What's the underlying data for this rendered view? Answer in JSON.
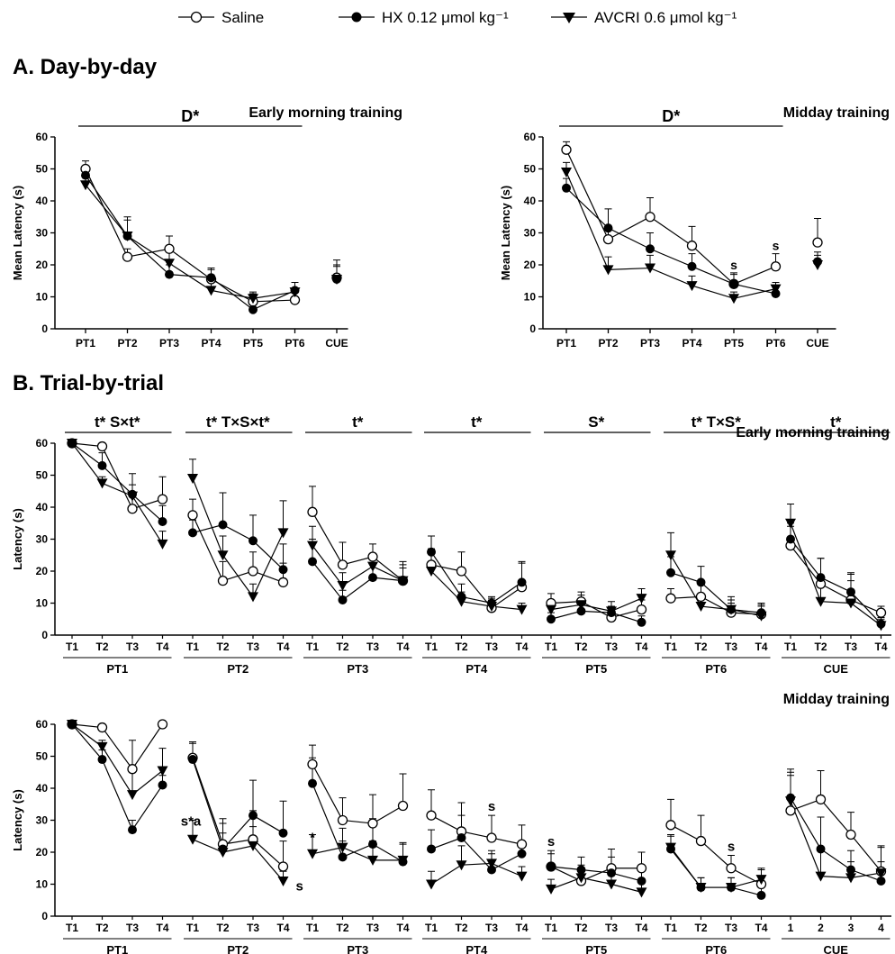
{
  "legend": {
    "saline": "Saline",
    "hx": "HX 0.12 μmol kg⁻¹",
    "avcri": "AVCRI 0.6 μmol kg⁻¹"
  },
  "section_a_title": "A. Day-by-day",
  "section_b_title": "B. Trial-by-trial",
  "chart_data": [
    {
      "type": "line",
      "title": "Early morning training",
      "ylabel": "Mean Latency (s)",
      "ylim": [
        0,
        60
      ],
      "yticks": [
        0,
        10,
        20,
        30,
        40,
        50,
        60
      ],
      "categories": [
        "PT1",
        "PT2",
        "PT3",
        "PT4",
        "PT5",
        "PT6",
        "CUE"
      ],
      "annotations": [
        {
          "text": "D*"
        }
      ],
      "series": [
        {
          "name": "Saline",
          "values": [
            50,
            22.5,
            25,
            15.5,
            8.5,
            9,
            16
          ],
          "err": [
            2.5,
            2.5,
            4,
            3,
            2.5,
            2.5,
            5.5
          ]
        },
        {
          "name": "HX 0.12 μmol kg⁻¹",
          "values": [
            48,
            29,
            17,
            16,
            6,
            12,
            15.5
          ],
          "err": [
            3,
            6,
            3,
            3,
            2,
            2.5,
            4
          ]
        },
        {
          "name": "AVCRI 0.6 μmol kg⁻¹",
          "values": [
            45,
            29,
            20.5,
            12,
            9.5,
            11.5,
            15.5
          ],
          "err": [
            3,
            5,
            4,
            3,
            2,
            3,
            4.5
          ]
        }
      ]
    },
    {
      "type": "line",
      "title": "Midday training",
      "ylabel": "Mean Latency (s)",
      "ylim": [
        0,
        60
      ],
      "yticks": [
        0,
        10,
        20,
        30,
        40,
        50,
        60
      ],
      "categories": [
        "PT1",
        "PT2",
        "PT3",
        "PT4",
        "PT5",
        "PT6",
        "CUE"
      ],
      "annotations": [
        {
          "text": "D*"
        },
        {
          "text": "s",
          "category": "PT5"
        },
        {
          "text": "s",
          "category": "PT6"
        }
      ],
      "series": [
        {
          "name": "Saline",
          "values": [
            56,
            28,
            35,
            26,
            14,
            19.5,
            27
          ],
          "err": [
            2.5,
            3,
            6,
            6,
            3.5,
            4,
            7.5
          ]
        },
        {
          "name": "HX 0.12 μmol kg⁻¹",
          "values": [
            44,
            31.5,
            25,
            19.5,
            14,
            11,
            21
          ],
          "err": [
            3,
            6,
            5,
            4,
            3,
            2,
            3
          ]
        },
        {
          "name": "AVCRI 0.6 μmol kg⁻¹",
          "values": [
            49,
            18.5,
            19,
            13.5,
            9.5,
            12.5,
            20
          ],
          "err": [
            3,
            4,
            4,
            3,
            2,
            2,
            3
          ]
        }
      ]
    },
    {
      "type": "line",
      "title": "Early morning training",
      "ylabel": "Latency (s)",
      "ylim": [
        0,
        60
      ],
      "yticks": [
        0,
        10,
        20,
        30,
        40,
        50,
        60
      ],
      "trial_labels": [
        "T1",
        "T2",
        "T3",
        "T4"
      ],
      "groups": [
        {
          "label": "PT1",
          "annotation": "t* S×t*",
          "saline": [
            60,
            59,
            39.5,
            42.5
          ],
          "hx": [
            60,
            53,
            44,
            35.5
          ],
          "avcri": [
            60,
            47.5,
            43.5,
            28.5
          ],
          "err": [
            [
              0,
              0,
              0
            ],
            [
              1,
              4,
              2
            ],
            [
              4,
              3,
              7
            ],
            [
              7,
              5,
              4
            ]
          ]
        },
        {
          "label": "PT2",
          "annotation": "t* T×S×t*",
          "saline": [
            37.5,
            17,
            20,
            16.5
          ],
          "hx": [
            32,
            34.5,
            29.5,
            20.5
          ],
          "avcri": [
            49,
            25,
            12,
            32
          ],
          "err": [
            [
              5,
              4,
              6
            ],
            [
              6,
              10,
              6
            ],
            [
              6,
              8,
              4
            ],
            [
              6,
              8,
              10
            ]
          ]
        },
        {
          "label": "PT3",
          "annotation": "t*",
          "saline": [
            38.5,
            22,
            24.5,
            17
          ],
          "hx": [
            23,
            11,
            18,
            17
          ],
          "avcri": [
            28,
            15.5,
            21.5,
            17
          ],
          "err": [
            [
              8,
              7,
              6
            ],
            [
              7,
              3,
              4
            ],
            [
              4,
              4,
              4
            ],
            [
              5,
              6,
              4
            ]
          ]
        },
        {
          "label": "PT4",
          "annotation": "t*",
          "saline": [
            22,
            20,
            8.5,
            15
          ],
          "hx": [
            26,
            12,
            10,
            16.5
          ],
          "avcri": [
            20,
            10.5,
            9,
            8
          ],
          "err": [
            [
              5,
              5,
              3
            ],
            [
              6,
              4,
              3
            ],
            [
              3,
              2,
              2
            ],
            [
              8,
              6,
              2
            ]
          ]
        },
        {
          "label": "PT5",
          "annotation": "S*",
          "saline": [
            10,
            10.5,
            5.5,
            8
          ],
          "hx": [
            5,
            7.5,
            7,
            4
          ],
          "avcri": [
            8,
            9.5,
            7.5,
            11.5
          ],
          "err": [
            [
              3,
              2,
              3
            ],
            [
              3,
              3,
              3
            ],
            [
              3,
              2,
              3
            ],
            [
              3,
              2,
              3
            ]
          ]
        },
        {
          "label": "PT6",
          "annotation": "t* T×S*",
          "saline": [
            11.5,
            12,
            7,
            6.5
          ],
          "hx": [
            19.5,
            16.5,
            8,
            7
          ],
          "avcri": [
            25,
            9,
            8,
            6
          ],
          "err": [
            [
              3,
              5,
              7
            ],
            [
              4,
              5,
              3
            ],
            [
              3,
              4,
              3
            ],
            [
              3,
              3,
              3
            ]
          ]
        },
        {
          "label": "CUE",
          "annotation": "t*",
          "saline": [
            28,
            16,
            11,
            7
          ],
          "hx": [
            30,
            18,
            13.5,
            3.5
          ],
          "avcri": [
            35,
            10.5,
            10,
            3
          ],
          "err": [
            [
              6,
              5,
              6
            ],
            [
              8,
              6,
              7
            ],
            [
              8,
              6,
              7
            ],
            [
              2,
              2,
              2
            ]
          ]
        }
      ]
    },
    {
      "type": "line",
      "title": "Midday training",
      "ylabel": "Latency (s)",
      "ylim": [
        0,
        60
      ],
      "yticks": [
        0,
        10,
        20,
        30,
        40,
        50,
        60
      ],
      "trial_labels": [
        "T1",
        "T2",
        "T3",
        "T4"
      ],
      "groups": [
        {
          "label": "PT1",
          "saline": [
            60,
            59,
            46,
            60
          ],
          "hx": [
            60,
            49,
            27,
            41
          ],
          "avcri": [
            60,
            53,
            38,
            45.5
          ],
          "err": [
            [
              0,
              0,
              0
            ],
            [
              1,
              3,
              2
            ],
            [
              9,
              3,
              8
            ],
            [
              0,
              3,
              7
            ]
          ]
        },
        {
          "label": "PT2",
          "annotations": [
            {
              "trial": 0,
              "text": "s*a"
            },
            {
              "trial": 3,
              "text": "s"
            }
          ],
          "saline": [
            49.5,
            22.5,
            24,
            15.5
          ],
          "hx": [
            49,
            21,
            31.5,
            26
          ],
          "avcri": [
            24,
            20,
            22,
            11
          ],
          "err": [
            [
              5,
              5,
              6
            ],
            [
              8,
              8,
              6
            ],
            [
              9,
              11,
              6
            ],
            [
              8,
              10,
              3
            ]
          ]
        },
        {
          "label": "PT3",
          "annotations": [
            {
              "trial": 0,
              "text": "*"
            }
          ],
          "saline": [
            47.5,
            30,
            29,
            34.5
          ],
          "hx": [
            41.5,
            18.5,
            22.5,
            17
          ],
          "avcri": [
            19.5,
            21.5,
            17.5,
            17.5
          ],
          "err": [
            [
              6,
              8,
              6
            ],
            [
              7,
              5,
              6
            ],
            [
              9,
              8,
              6
            ],
            [
              10,
              6,
              5
            ]
          ]
        },
        {
          "label": "PT4",
          "annotations": [
            {
              "trial": 2,
              "text": "s"
            }
          ],
          "saline": [
            31.5,
            26.5,
            24.5,
            22.5
          ],
          "hx": [
            21,
            24.5,
            14.5,
            19.5
          ],
          "avcri": [
            10,
            16,
            16.5,
            12.5
          ],
          "err": [
            [
              8,
              6,
              4
            ],
            [
              9,
              7,
              6
            ],
            [
              7,
              5,
              4
            ],
            [
              6,
              4,
              3
            ]
          ]
        },
        {
          "label": "PT5",
          "annotations": [
            {
              "trial": 0,
              "text": "s"
            }
          ],
          "saline": [
            15.5,
            11,
            15,
            15
          ],
          "hx": [
            15.5,
            14.5,
            13.5,
            11
          ],
          "avcri": [
            8.5,
            12,
            10,
            7.5
          ],
          "err": [
            [
              5,
              4,
              3
            ],
            [
              5,
              4,
              3
            ],
            [
              6,
              5,
              4
            ],
            [
              5,
              4,
              3
            ]
          ]
        },
        {
          "label": "PT6",
          "annotations": [
            {
              "trial": 2,
              "text": "s"
            }
          ],
          "saline": [
            28.5,
            23.5,
            15,
            10
          ],
          "hx": [
            21,
            9,
            9,
            6.5
          ],
          "avcri": [
            21.5,
            9,
            9,
            11.5
          ],
          "err": [
            [
              8,
              4,
              4
            ],
            [
              8,
              3,
              3
            ],
            [
              4,
              3,
              3
            ],
            [
              5,
              3,
              3
            ]
          ]
        },
        {
          "label": "CUE",
          "trial_labels": [
            "1",
            "2",
            "3",
            "4"
          ],
          "saline": [
            33,
            36.5,
            25.5,
            14
          ],
          "hx": [
            37,
            21,
            14.5,
            11
          ],
          "avcri": [
            36,
            12.5,
            12,
            13.5
          ],
          "err": [
            [
              12,
              9,
              8
            ],
            [
              9,
              10,
              9
            ],
            [
              7,
              6,
              5
            ],
            [
              8,
              6,
              8
            ]
          ]
        }
      ]
    }
  ]
}
